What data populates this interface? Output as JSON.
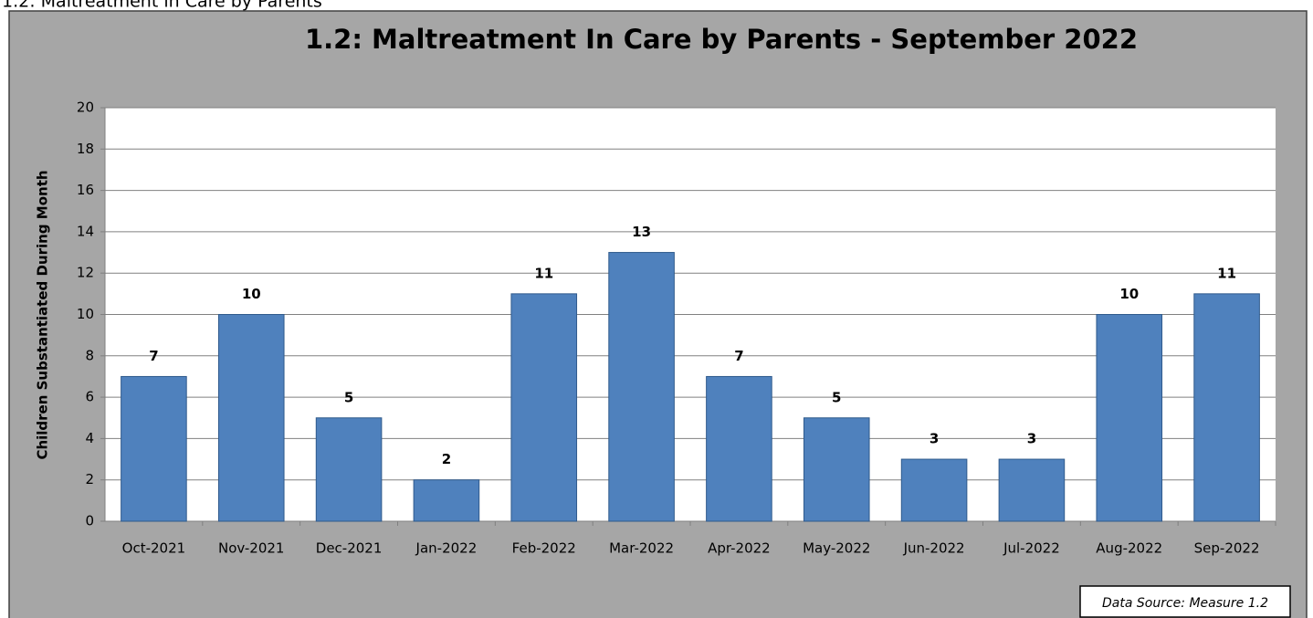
{
  "page_heading": "1.2: Maltreatment in Care by Parents",
  "chart_data": {
    "type": "bar",
    "title": "1.2: Maltreatment In Care by Parents - September 2022",
    "y_axis_label": "Children Substantiated During Month",
    "categories": [
      "Oct-2021",
      "Nov-2021",
      "Dec-2021",
      "Jan-2022",
      "Feb-2022",
      "Mar-2022",
      "Apr-2022",
      "May-2022",
      "Jun-2022",
      "Jul-2022",
      "Aug-2022",
      "Sep-2022"
    ],
    "values": [
      7,
      10,
      5,
      2,
      11,
      13,
      7,
      5,
      3,
      3,
      10,
      11
    ],
    "color": "#4f81bd",
    "ylim": [
      0,
      20
    ],
    "yticks": [
      0,
      2,
      4,
      6,
      8,
      10,
      12,
      14,
      16,
      18,
      20
    ],
    "grid": true,
    "source_note": "Data Source: Measure 1.2"
  }
}
